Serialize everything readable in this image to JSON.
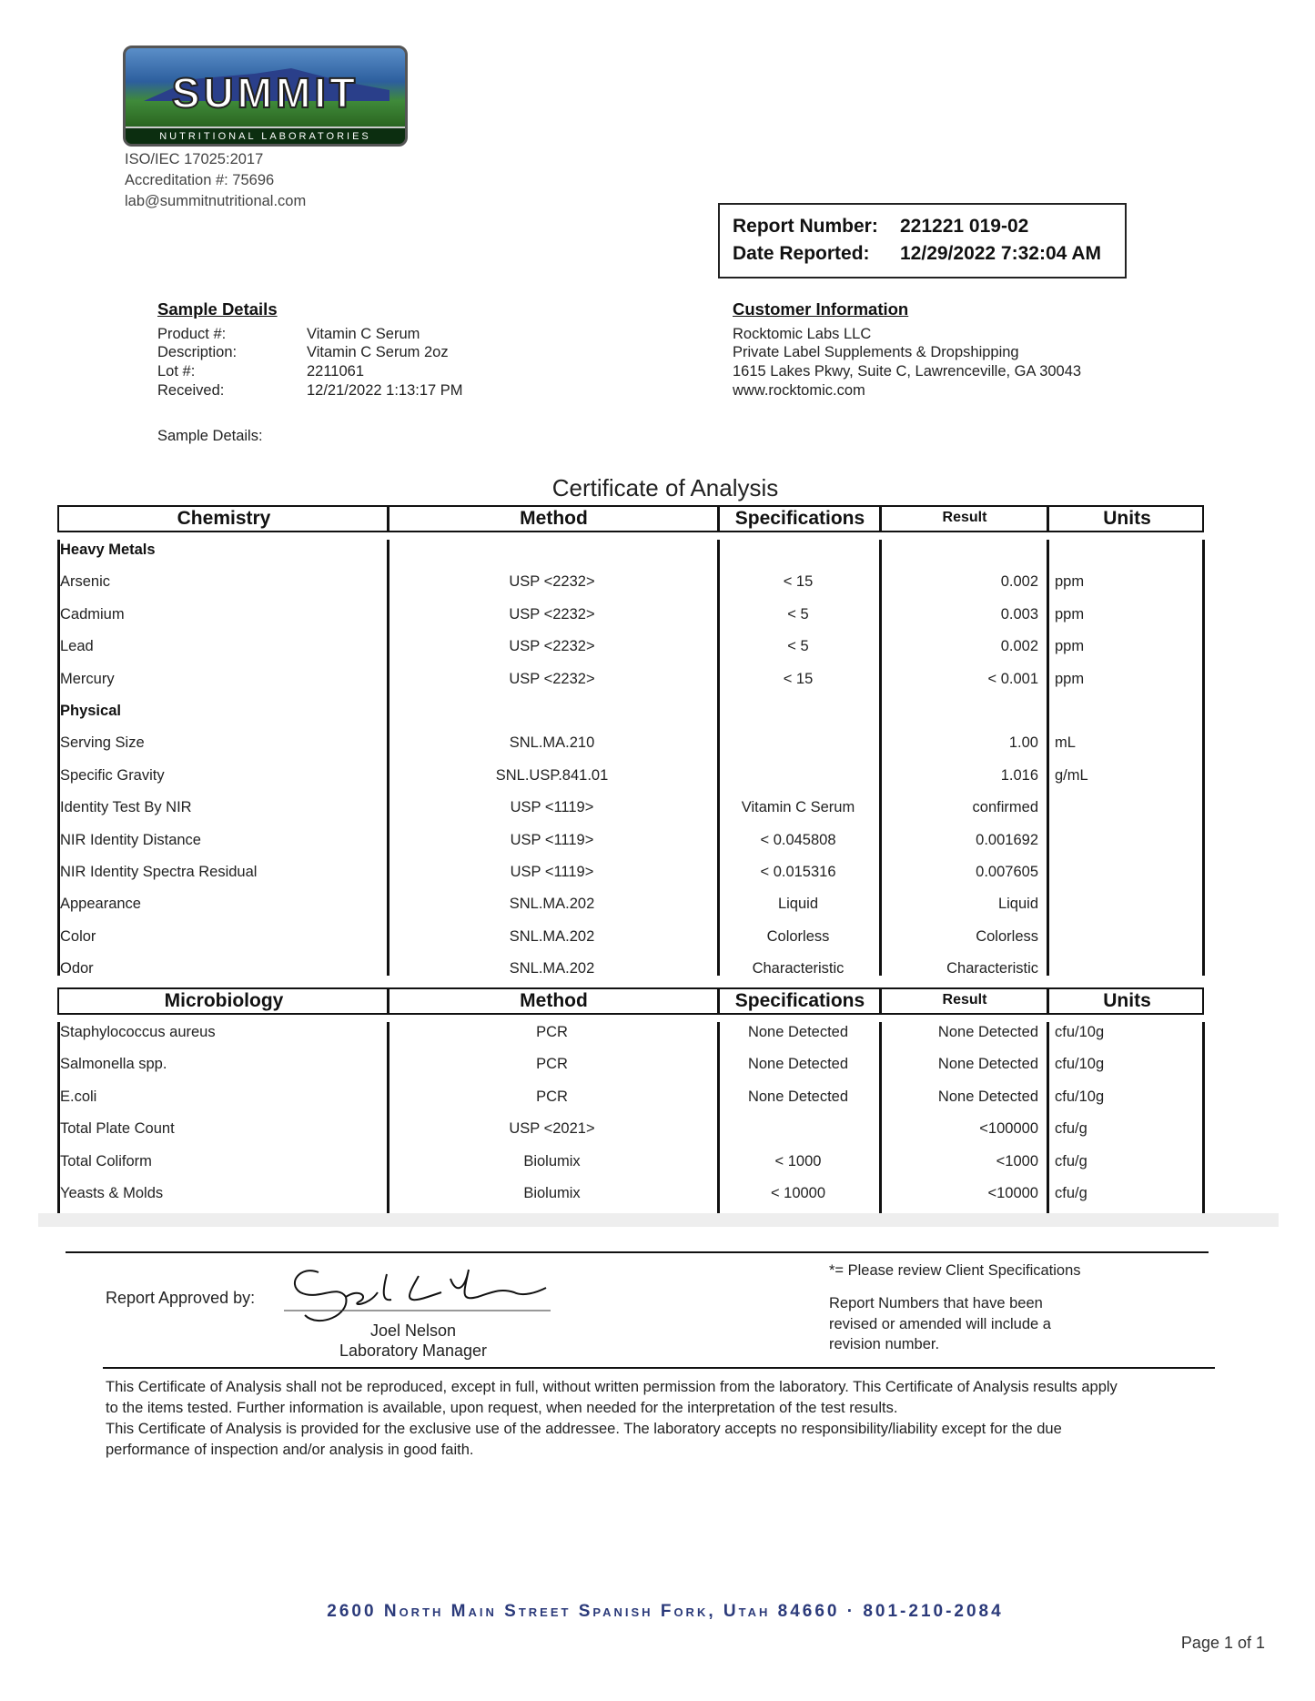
{
  "lab": {
    "logo_text": "SUMMIT",
    "logo_subtext": "NUTRITIONAL LABORATORIES",
    "iso": "ISO/IEC 17025:2017",
    "accreditation": "Accreditation #: 75696",
    "email": "lab@summitnutritional.com",
    "logo_colors": {
      "sky": "#2d5f9e",
      "grass": "#3f8a3a",
      "band": "#0c2e10"
    }
  },
  "report": {
    "number_label": "Report Number:",
    "number": "221221 019-02",
    "date_label": "Date Reported:",
    "date": "12/29/2022 7:32:04 AM"
  },
  "sample": {
    "heading": "Sample Details",
    "rows": [
      {
        "label": "Product #:",
        "value": "Vitamin C Serum"
      },
      {
        "label": "Description:",
        "value": "Vitamin C Serum 2oz"
      },
      {
        "label": "Lot #:",
        "value": "2211061"
      },
      {
        "label": "Received:",
        "value": "12/21/2022 1:13:17 PM"
      }
    ],
    "details_label": "Sample Details:"
  },
  "customer": {
    "heading": "Customer Information",
    "lines": [
      "Rocktomic Labs LLC",
      "Private Label Supplements & Dropshipping",
      "1615 Lakes Pkwy, Suite C, Lawrenceville, GA 30043",
      "www.rocktomic.com"
    ]
  },
  "title": "Certificate of Analysis",
  "chemistry": {
    "headers": [
      "Chemistry",
      "Method",
      "Specifications",
      "Result",
      "Units"
    ],
    "rows": [
      {
        "group": "Heavy Metals"
      },
      {
        "name": "Arsenic",
        "method": "USP <2232>",
        "spec": "< 15",
        "result": "0.002",
        "units": "ppm"
      },
      {
        "name": "Cadmium",
        "method": "USP <2232>",
        "spec": "< 5",
        "result": "0.003",
        "units": "ppm"
      },
      {
        "name": "Lead",
        "method": "USP <2232>",
        "spec": "< 5",
        "result": "0.002",
        "units": "ppm"
      },
      {
        "name": "Mercury",
        "method": "USP <2232>",
        "spec": "< 15",
        "result": "< 0.001",
        "units": "ppm"
      },
      {
        "group": "Physical"
      },
      {
        "name": "Serving Size",
        "method": "SNL.MA.210",
        "spec": "",
        "result": "1.00",
        "units": "mL"
      },
      {
        "name": "Specific Gravity",
        "method": "SNL.USP.841.01",
        "spec": "",
        "result": "1.016",
        "units": "g/mL"
      },
      {
        "name": "Identity Test By NIR",
        "method": "USP <1119>",
        "spec": "Vitamin C Serum",
        "result": "confirmed",
        "units": ""
      },
      {
        "name": "NIR Identity Distance",
        "method": "USP <1119>",
        "spec": "< 0.045808",
        "result": "0.001692",
        "units": ""
      },
      {
        "name": "NIR Identity Spectra Residual",
        "method": "USP <1119>",
        "spec": "< 0.015316",
        "result": "0.007605",
        "units": ""
      },
      {
        "name": "Appearance",
        "method": "SNL.MA.202",
        "spec": "Liquid",
        "result": "Liquid",
        "units": ""
      },
      {
        "name": "Color",
        "method": "SNL.MA.202",
        "spec": "Colorless",
        "result": "Colorless",
        "units": ""
      },
      {
        "name": "Odor",
        "method": "SNL.MA.202",
        "spec": "Characteristic",
        "result": "Characteristic",
        "units": ""
      }
    ]
  },
  "microbiology": {
    "headers": [
      "Microbiology",
      "Method",
      "Specifications",
      "Result",
      "Units"
    ],
    "rows": [
      {
        "name": "Staphylococcus aureus",
        "method": "PCR",
        "spec": "None Detected",
        "result": "None Detected",
        "units": "cfu/10g"
      },
      {
        "name": "Salmonella spp.",
        "method": "PCR",
        "spec": "None Detected",
        "result": "None Detected",
        "units": "cfu/10g"
      },
      {
        "name": "E.coli",
        "method": "PCR",
        "spec": "None Detected",
        "result": "None Detected",
        "units": "cfu/10g"
      },
      {
        "name": "Total Plate Count",
        "method": "USP <2021>",
        "spec": "",
        "result": "<100000",
        "units": "cfu/g"
      },
      {
        "name": "Total Coliform",
        "method": "Biolumix",
        "spec": "< 1000",
        "result": "<1000",
        "units": "cfu/g"
      },
      {
        "name": "Yeasts & Molds",
        "method": "Biolumix",
        "spec": "< 10000",
        "result": "<10000",
        "units": "cfu/g"
      }
    ]
  },
  "approval": {
    "label": "Report Approved by:",
    "signature": "Joel L Nelson",
    "name": "Joel Nelson",
    "role": "Laboratory Manager",
    "note1": "*= Please review Client Specifications",
    "note2": [
      "Report Numbers that have been",
      "revised or amended will include a",
      "revision number."
    ]
  },
  "disclaimer": [
    "This Certificate of Analysis shall not be reproduced, except in full, without written permission from the laboratory. This Certificate of Analysis results apply",
    "to the items tested. Further information is available, upon request, when needed for the interpretation of the test results.",
    "This Certificate of Analysis is provided for the exclusive use of the addressee. The laboratory accepts no responsibility/liability except for the due",
    "performance of inspection and/or analysis in good faith."
  ],
  "footer": {
    "address": "2600 North Main Street  Spanish Fork, Utah  84660 · 801-210-2084",
    "address_color": "#2b3a7a",
    "page": "Page 1 of 1"
  }
}
